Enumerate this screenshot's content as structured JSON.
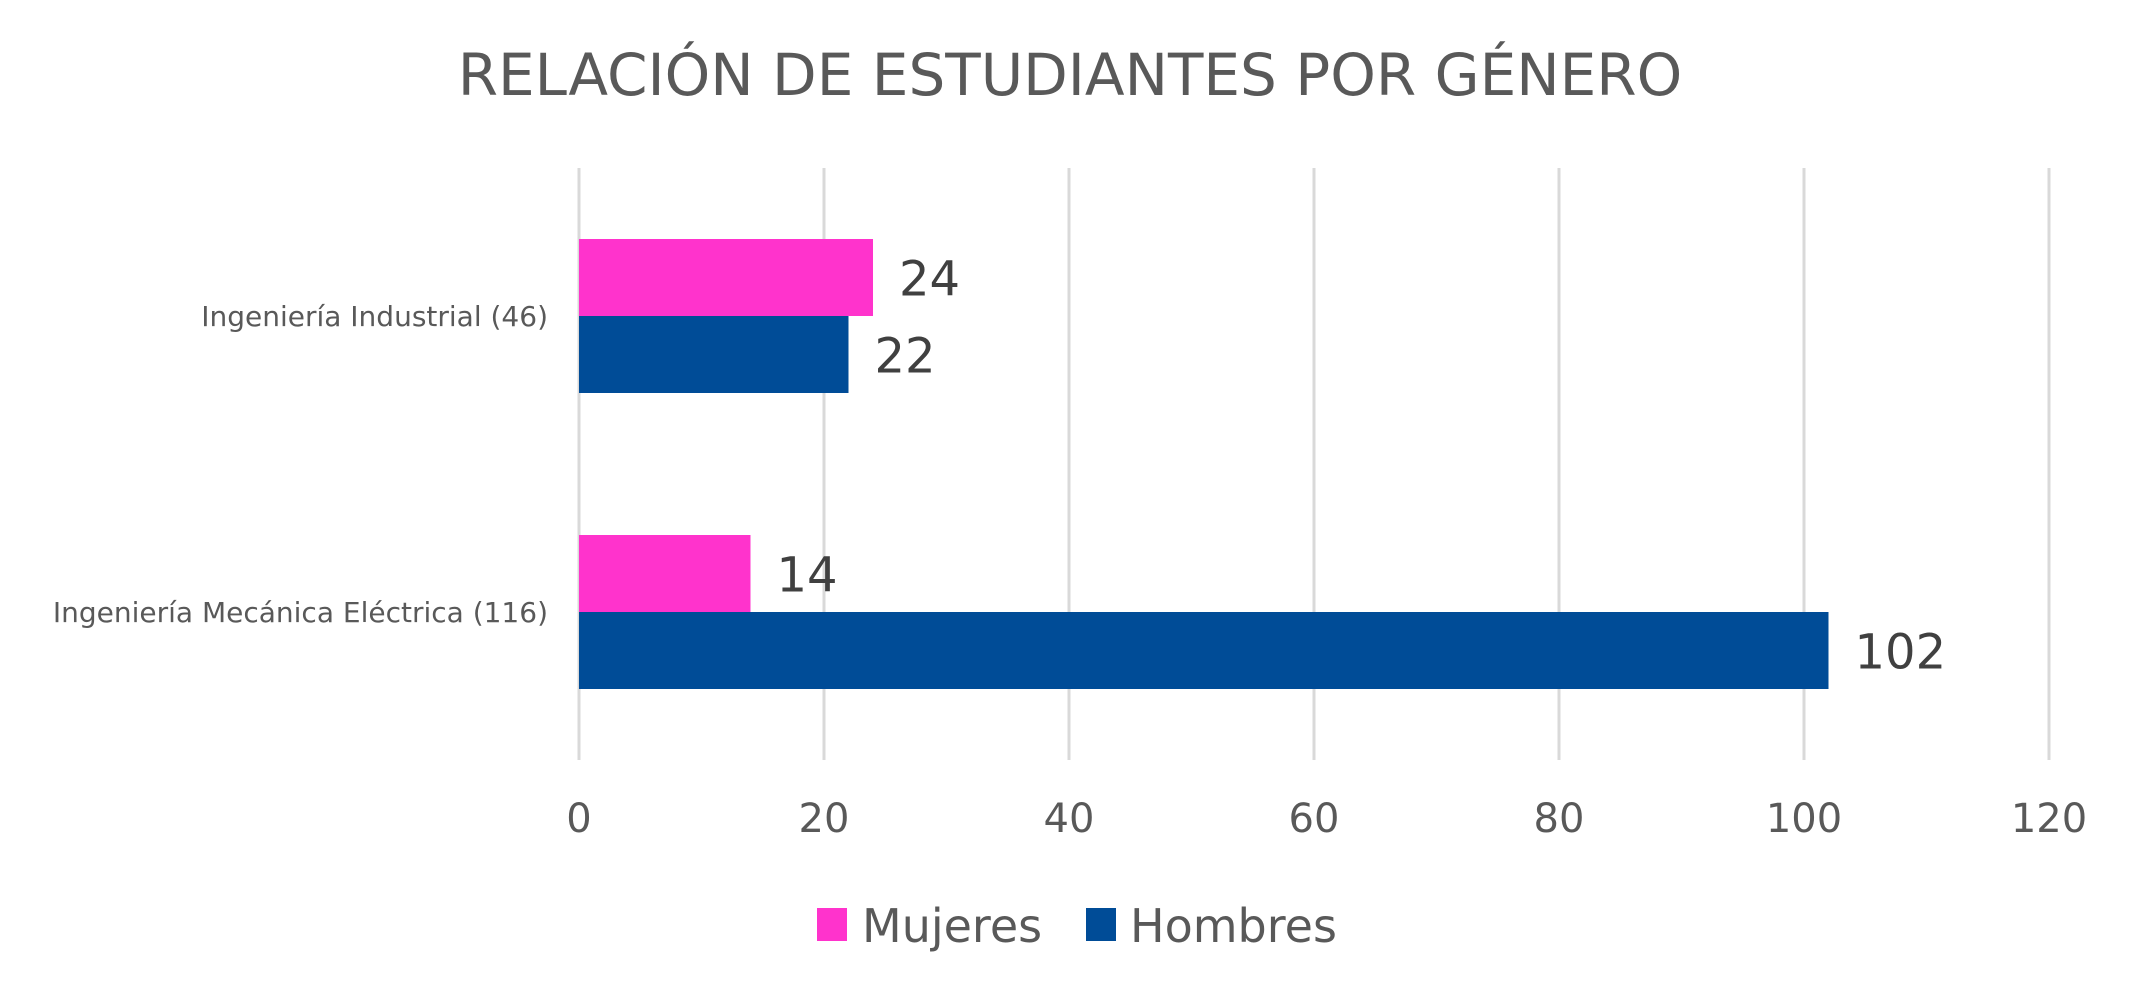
{
  "chart_data": {
    "type": "bar",
    "orientation": "horizontal",
    "title": "RELACIÓN DE ESTUDIANTES POR GÉNERO",
    "xlabel": "",
    "ylabel": "",
    "categories": [
      "Ingeniería Industrial (46)",
      "Ingeniería Mecánica Eléctrica (116)"
    ],
    "series": [
      {
        "name": "Mujeres",
        "color": "#FF33CC",
        "values": [
          24,
          14
        ]
      },
      {
        "name": "Hombres",
        "color": "#004C97",
        "values": [
          22,
          102
        ]
      }
    ],
    "xlim": [
      0,
      120
    ],
    "xticks": [
      0,
      20,
      40,
      60,
      80,
      100,
      120
    ],
    "xtick_labels": [
      "0",
      "20",
      "40",
      "60",
      "80",
      "100",
      "120"
    ],
    "data_labels": true,
    "grid": "vertical",
    "legend": {
      "position": "bottom",
      "entries": [
        "Mujeres",
        "Hombres"
      ]
    }
  }
}
